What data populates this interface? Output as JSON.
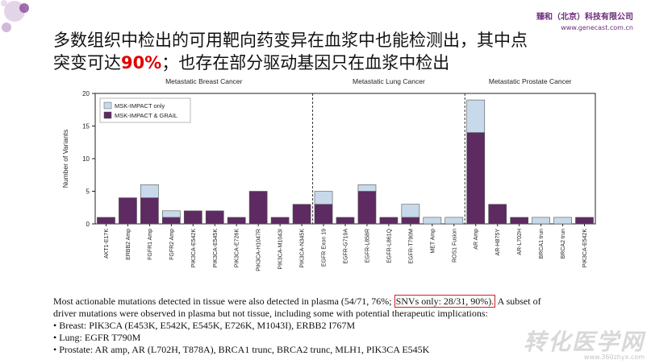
{
  "header": {
    "company_name": "臻和（北京）科技有限公司",
    "company_url": "www.genecast.com.cn"
  },
  "title": {
    "line1": "多数组织中检出的可用靶向药变异在血浆中也能检测出，其中点",
    "line2_prefix": "突变可达",
    "line2_highlight": "90%",
    "line2_suffix": "；也存在部分驱动基因只在血浆中检出"
  },
  "chart_data": {
    "type": "bar",
    "stacked": true,
    "ylabel": "Number of Variants",
    "ylim": [
      0,
      20
    ],
    "yticks": [
      0,
      5,
      10,
      15,
      20
    ],
    "panels": [
      "Metastatic Breast Cancer",
      "Metastatic Lung Cancer",
      "Metastatic Prostate Cancer"
    ],
    "categories": [
      "AKT1-E17K",
      "ERBB2 Amp",
      "FGFR1 Amp",
      "FGFR2 Amp",
      "PIK3CA-E542K",
      "PIK3CA-E545K",
      "PIK3CA-E726K",
      "PIK3CA-H1047R",
      "PIK3CA-M1043I",
      "PIK3CA-N345K",
      "EGFR Exon 19",
      "EGFR-G719A",
      "EGFR-L858R",
      "EGFR-L861Q",
      "EGFR-T790M",
      "MET Amp",
      "ROS1 Fusion",
      "AR Amp",
      "AR-H875Y",
      "AR-L702H",
      "BRCA1 trun",
      "BRCA2 trun",
      "PIK3CA-E542K"
    ],
    "panel_of_category": [
      0,
      0,
      0,
      0,
      0,
      0,
      0,
      0,
      0,
      0,
      1,
      1,
      1,
      1,
      1,
      1,
      1,
      2,
      2,
      2,
      2,
      2,
      2
    ],
    "series": [
      {
        "name": "MSK-IMPACT & GRAIL",
        "color": "#5e2a62",
        "values": [
          1,
          4,
          4,
          1,
          2,
          2,
          1,
          5,
          1,
          3,
          3,
          1,
          5,
          1,
          1,
          0,
          0,
          14,
          3,
          1,
          0,
          0,
          1
        ]
      },
      {
        "name": "MSK-IMPACT only",
        "color": "#c7d9ea",
        "values": [
          0,
          0,
          2,
          1,
          0,
          0,
          0,
          0,
          0,
          0,
          2,
          0,
          1,
          0,
          2,
          1,
          1,
          5,
          0,
          0,
          1,
          1,
          0
        ]
      }
    ],
    "legend_order": [
      "MSK-IMPACT only",
      "MSK-IMPACT & GRAIL"
    ],
    "legend_position": "top-left",
    "grid": false
  },
  "caption": {
    "line1_before": "Most actionable mutations detected in tissue were also detected in plasma (54/71, 76%; ",
    "line1_boxed": "SNVs only: 28/31, 90%).",
    "line1_after": " A subset of",
    "line2": "driver mutations were observed in plasma but not tissue, including some with potential therapeutic implications:",
    "bullets": [
      "Breast: PIK3CA (E453K, E542K, E545K, E726K, M1043I), ERBB2 I767M",
      "Lung: EGFR T790M",
      "Prostate: AR amp, AR (L702H, T878A), BRCA1 trunc, BRCA2 trunc, MLH1, PIK3CA E545K"
    ]
  },
  "watermark": {
    "text": "转化医学网",
    "url": "www.360zhyx.com"
  }
}
